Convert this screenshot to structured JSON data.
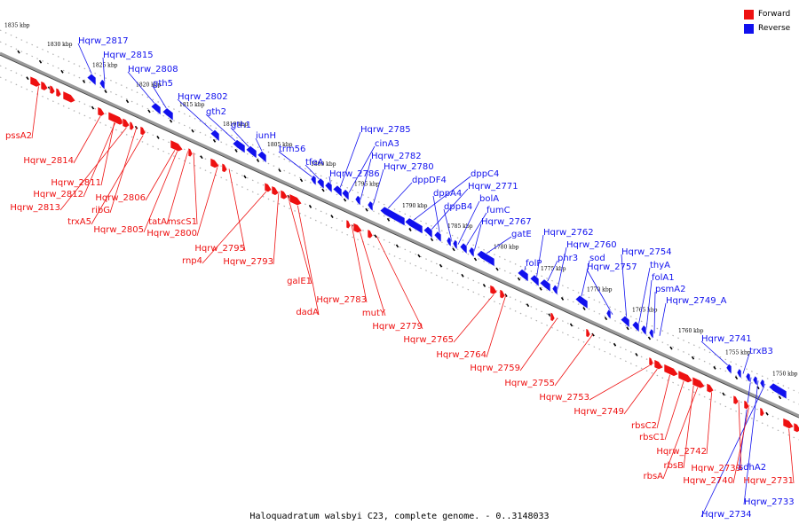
{
  "legend": {
    "items": [
      {
        "label": "Forward",
        "color": "#ee1111"
      },
      {
        "label": "Reverse",
        "color": "#1111ee"
      }
    ]
  },
  "caption": "Haloquadratum walsbyi C23, complete genome. - 0..3148033",
  "colors": {
    "forward": "#ee1111",
    "reverse": "#1111ee",
    "backbone": "#888888"
  },
  "ticks": [
    "1835 kbp",
    "1830 kbp",
    "1825 kbp",
    "1820 kbp",
    "1815 kbp",
    "1810 kbp",
    "1805 kbp",
    "1800 kbp",
    "1795 kbp",
    "1790 kbp",
    "1785 kbp",
    "1780 kbp",
    "1775 kbp",
    "1770 kbp",
    "1765 kbp",
    "1760 kbp",
    "1755 kbp",
    "1750 kbp"
  ],
  "reverse_genes": [
    "Hqrw_2817",
    "Hqrw_2815",
    "Hqrw_2808",
    "gth5",
    "Hqrw_2802",
    "gth2",
    "gth1",
    "iunH",
    "trm56",
    "tfeA",
    "Hqrw_2786",
    "Hqrw_2785",
    "cinA3",
    "Hqrw_2782",
    "Hqrw_2780",
    "dppDF4",
    "dppC4",
    "Hqrw_2771",
    "dppA4",
    "dppB4",
    "bolA",
    "fumC",
    "Hqrw_2767",
    "gatE",
    "folP",
    "Hqrw_2762",
    "phr3",
    "Hqrw_2760",
    "sod",
    "Hqrw_2757",
    "Hqrw_2754",
    "thyA",
    "folA1",
    "psmA2",
    "Hqrw_2749_A",
    "Hqrw_2741",
    "trxB3",
    "sdhA2",
    "Hqrw_2733",
    "Hqrw_2734"
  ],
  "forward_genes": [
    "pssA2",
    "Hqrw_2814",
    "Hqrw_2811",
    "Hqrw_2812",
    "Hqrw_2813",
    "ribG",
    "trxA5",
    "Hqrw_2806",
    "Hqrw_2805",
    "tatA",
    "mscS1",
    "Hqrw_2800",
    "Hqrw_2795",
    "rnp4",
    "Hqrw_2793",
    "galE1",
    "dadA",
    "Hqrw_2783",
    "mutY",
    "Hqrw_2779",
    "Hqrw_2765",
    "Hqrw_2764",
    "Hqrw_2759",
    "Hqrw_2755",
    "Hqrw_2753",
    "Hqrw_2749",
    "rbsC2",
    "rbsC1",
    "rbsB",
    "rbsA",
    "Hqrw_2742",
    "Hqrw_2739",
    "Hqrw_2740",
    "Hqrw_2731"
  ]
}
